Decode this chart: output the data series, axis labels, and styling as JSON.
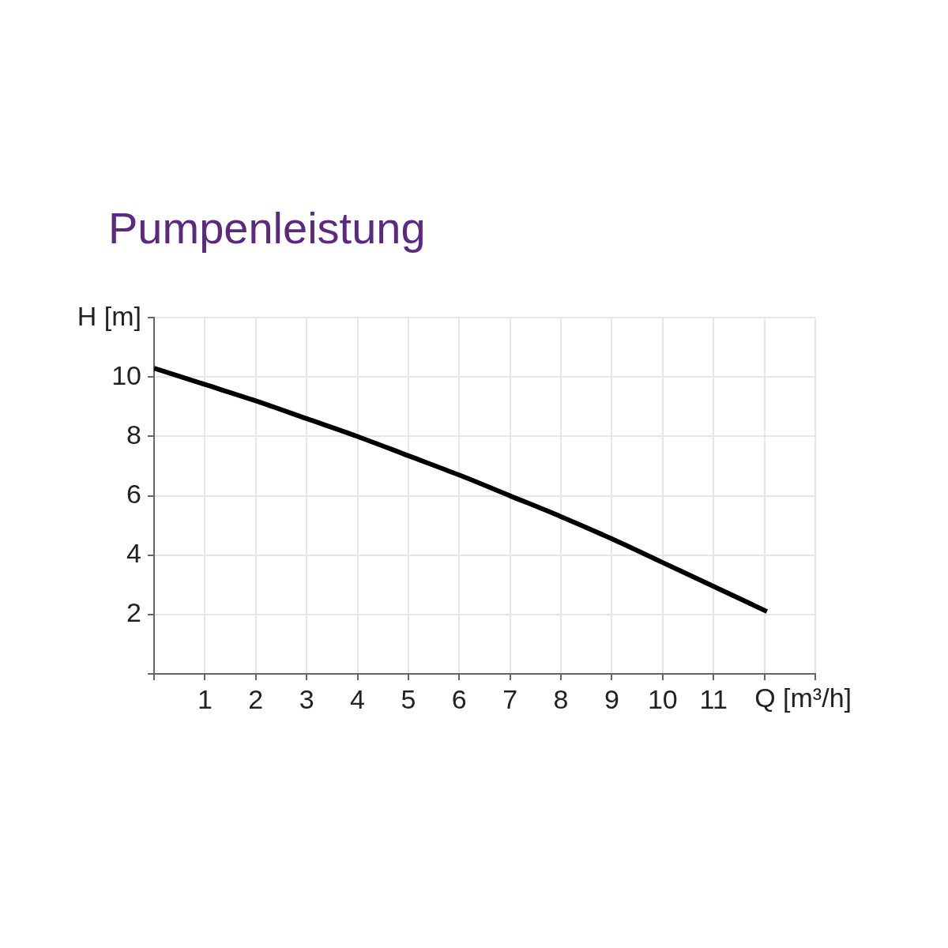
{
  "chart_data": {
    "type": "line",
    "title": "Pumpenleistung",
    "xlabel": "Q [m³/h]",
    "ylabel": "H [m]",
    "xlim": [
      0,
      13
    ],
    "ylim": [
      0,
      12
    ],
    "xticks": [
      {
        "value": 0,
        "label": null
      },
      1,
      2,
      3,
      4,
      5,
      6,
      7,
      8,
      9,
      10,
      11,
      {
        "value": 12,
        "label": null
      },
      {
        "value": 13,
        "label": null
      }
    ],
    "yticks": [
      {
        "value": 0,
        "label": null
      },
      2,
      4,
      6,
      8,
      10,
      {
        "value": 12,
        "label": null
      }
    ],
    "grid": true,
    "marker": "none",
    "line_style": "solid",
    "series": [
      {
        "color": "#000000",
        "x": [
          0,
          1,
          2,
          3,
          4,
          5,
          6,
          7,
          8,
          9,
          10,
          11,
          12.05
        ],
        "values": [
          10.3,
          9.75,
          9.2,
          8.6,
          8.0,
          7.35,
          6.7,
          6.0,
          5.3,
          4.55,
          3.75,
          2.95,
          2.1
        ]
      }
    ]
  }
}
